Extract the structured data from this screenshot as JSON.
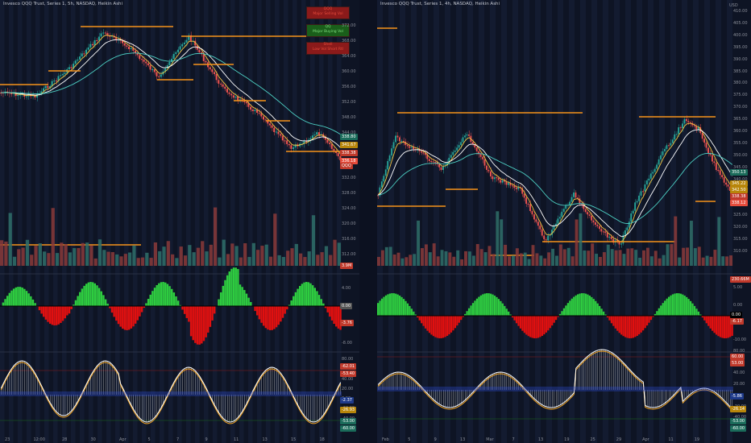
{
  "left": {
    "title": "Invesco QQQ Trust, Series 1, 5h, NASDAQ, Heikin Ashi",
    "price_axis": [
      "372.00",
      "368.00",
      "364.00",
      "360.00",
      "356.00",
      "352.00",
      "348.00",
      "344.00",
      "340.00",
      "336.00",
      "332.00",
      "328.00",
      "324.00",
      "320.00",
      "316.00",
      "312.00"
    ],
    "price_tags": [
      {
        "text": "338.80",
        "color": "#1a6b5a"
      },
      {
        "text": "341.67",
        "color": "#b8860b"
      },
      {
        "text": "338.38",
        "color": "#c0392b"
      },
      {
        "text": "336.18",
        "color": "#e74c3c"
      },
      {
        "text": "QQQ",
        "color": "#c0392b"
      }
    ],
    "volume_tag": {
      "text": "3.9M",
      "color": "#c0392b"
    },
    "osc1_axis": [
      "4.00",
      "0.00",
      "-4.00",
      "-8.00"
    ],
    "osc1_tags": [
      {
        "text": "0.00",
        "color": "#555"
      },
      {
        "text": "-3.76",
        "color": "#c0392b"
      }
    ],
    "osc2_axis": [
      "80.00",
      "60.00",
      "40.00",
      "20.00",
      "0.00",
      "-20.00",
      "-40.00",
      "-60.00"
    ],
    "osc2_tags": [
      {
        "text": "-62.01",
        "color": "#c0392b"
      },
      {
        "text": "-53.40",
        "color": "#c0392b"
      },
      {
        "text": "-2.37",
        "color": "#1e3a8a"
      },
      {
        "text": "-26.93",
        "color": "#b8860b"
      },
      {
        "text": "-53.00",
        "color": "#1a6b5a"
      },
      {
        "text": "-60.00",
        "color": "#1a6b5a"
      }
    ],
    "time_axis": [
      "23",
      "12:00",
      "28",
      "30",
      "Apr",
      "5",
      "7",
      "9",
      "11",
      "13",
      "15",
      "18"
    ],
    "signals": [
      {
        "top": "QQQ",
        "bottom": "Major Selling Vol",
        "color": "#8b1a1a",
        "text": "#e74c3c"
      },
      {
        "top": "QQ",
        "bottom": "Major Buying Vol",
        "color": "#1a5e1a",
        "text": "#7fe07f"
      },
      {
        "top": "Shell",
        "bottom": "Low Vol Short Rtl",
        "color": "#8b1a1a",
        "text": "#e74c3c"
      }
    ]
  },
  "right": {
    "title": "Invesco QQQ Trust, Series 1, 4h, NASDAQ, Heikin Ashi",
    "price_axis": [
      "410.00",
      "405.00",
      "400.00",
      "395.00",
      "390.00",
      "385.00",
      "380.00",
      "375.00",
      "370.00",
      "365.00",
      "360.00",
      "355.00",
      "350.00",
      "345.00",
      "340.00",
      "335.00",
      "330.00",
      "325.00",
      "320.00",
      "315.00",
      "310.00"
    ],
    "price_tags": [
      {
        "text": "350.13",
        "color": "#1a6b5a"
      },
      {
        "text": "345.22",
        "color": "#b8860b"
      },
      {
        "text": "342.50",
        "color": "#b8860b"
      },
      {
        "text": "338.38",
        "color": "#c0392b"
      },
      {
        "text": "338.12",
        "color": "#e74c3c"
      }
    ],
    "volume_tag": {
      "text": "230.66M",
      "color": "#c0392b"
    },
    "osc1_axis": [
      "5.00",
      "0.00",
      "-5.00",
      "-10.00"
    ],
    "osc1_tags": [
      {
        "text": "0.00",
        "color": "#000"
      },
      {
        "text": "-6.17",
        "color": "#c0392b"
      }
    ],
    "osc2_axis": [
      "80.00",
      "60.00",
      "40.00",
      "20.00",
      "0.00",
      "-20.00",
      "-40.00",
      "-60.00"
    ],
    "osc2_tags": [
      {
        "text": "60.00",
        "color": "#c0392b"
      },
      {
        "text": "53.00",
        "color": "#c0392b"
      },
      {
        "text": "-5.86",
        "color": "#1e3a8a"
      },
      {
        "text": "-26.14",
        "color": "#b8860b"
      },
      {
        "text": "-53.00",
        "color": "#1a6b5a"
      },
      {
        "text": "-60.00",
        "color": "#1a6b5a"
      }
    ],
    "time_axis": [
      "Feb",
      "5",
      "9",
      "13",
      "Mar",
      "7",
      "13",
      "19",
      "25",
      "29",
      "Apr",
      "11",
      "19"
    ],
    "currency_hint": "USD"
  },
  "colors": {
    "bull": "#26a69a",
    "bear": "#ef5350",
    "ema_fast": "#f5c542",
    "ema_slow": "#ffffff",
    "ema_long": "#4dd0c4",
    "level": "#f7931a",
    "osc_up": "#2ecc40",
    "osc_down": "#e01010",
    "osc2_white": "#d8d8d8",
    "osc2_orange": "#f5a623",
    "osc2_blue": "#2a4ad0"
  }
}
